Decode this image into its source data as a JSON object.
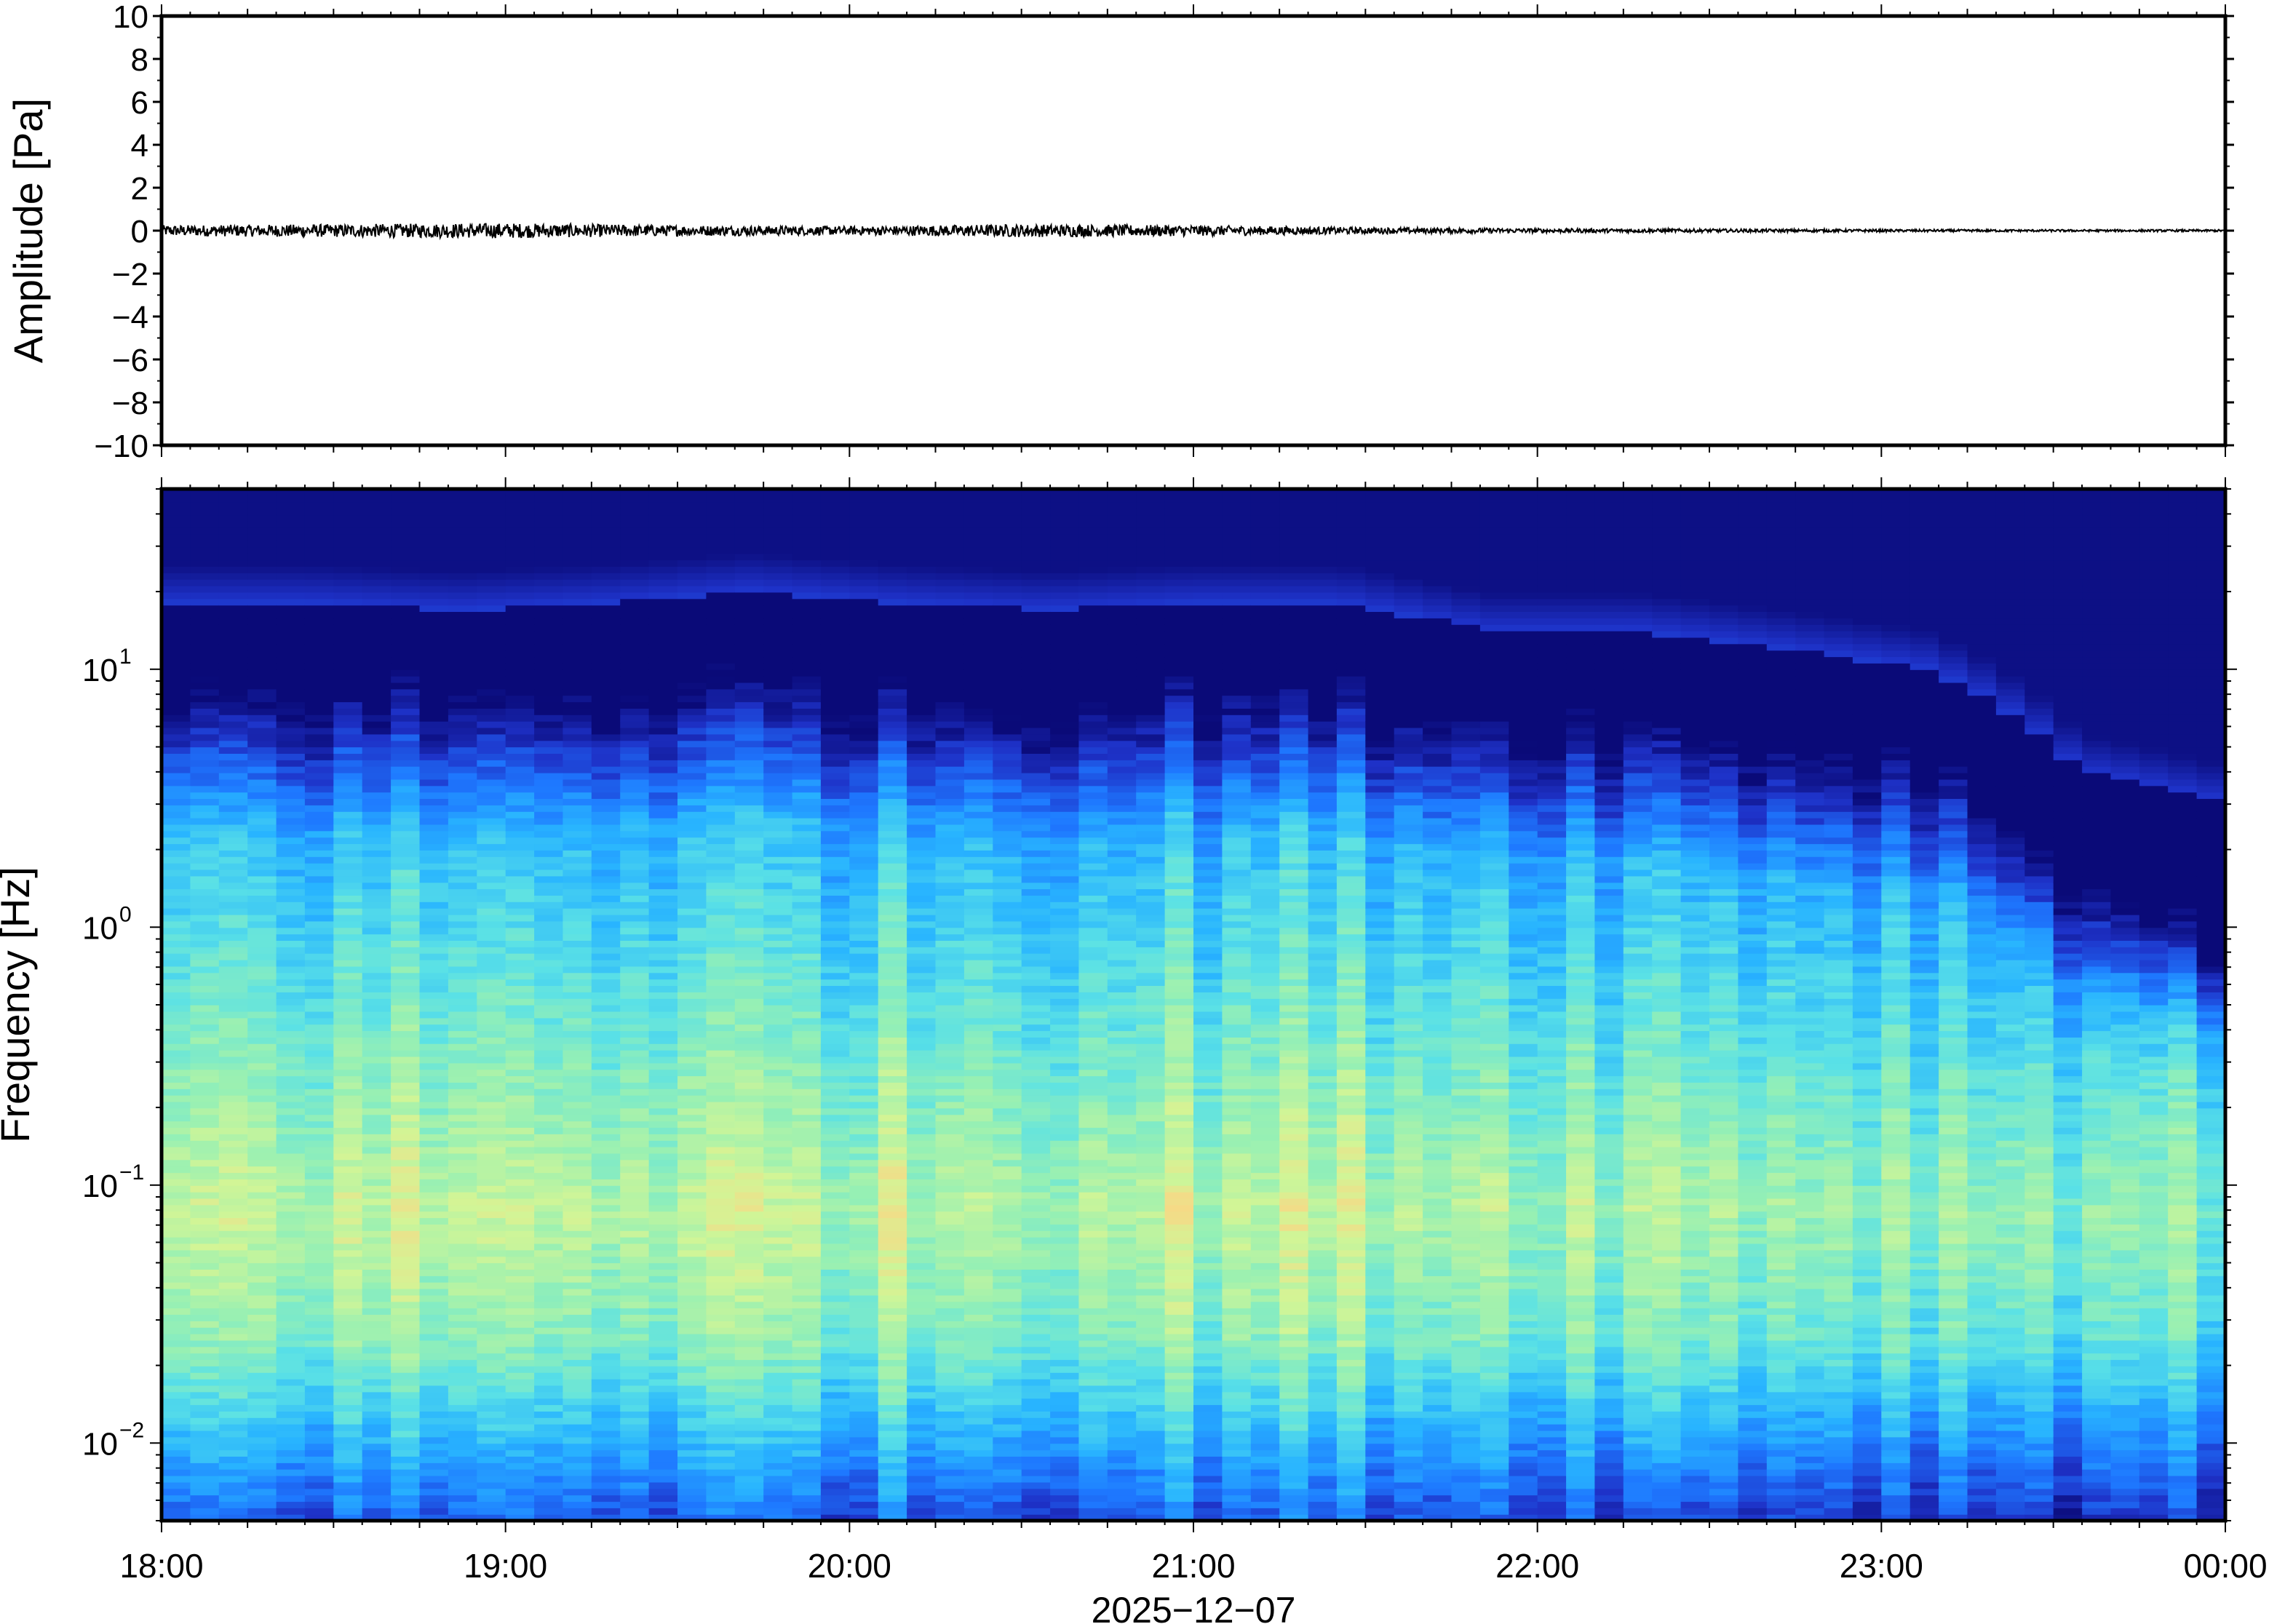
{
  "chart_data": [
    {
      "type": "line",
      "title": "",
      "xlabel": "",
      "ylabel": "Amplitude [Pa]",
      "ylim": [
        -10,
        10
      ],
      "yticks": [
        10,
        8,
        6,
        4,
        2,
        0,
        -2,
        -4,
        -6,
        -8,
        -10
      ],
      "ytick_labels": [
        "10",
        "8",
        "6",
        "4",
        "2",
        "0",
        "−2",
        "−4",
        "−6",
        "−8",
        "−10"
      ],
      "xlim": [
        "18:00",
        "00:00"
      ],
      "series": [
        {
          "color": "#000000",
          "x_hours": [
            0,
            0.5,
            1,
            1.5,
            2,
            2.5,
            3,
            3.5,
            4,
            4.5,
            5,
            5.5,
            6
          ],
          "envelope_pa": [
            0.25,
            0.3,
            0.35,
            0.25,
            0.2,
            0.3,
            0.25,
            0.15,
            0.1,
            0.08,
            0.06,
            0.05,
            0.05
          ]
        }
      ],
      "grid": false
    },
    {
      "type": "heatmap",
      "title": "",
      "xlabel": "2025−12−07",
      "ylabel": "Frequency [Hz]",
      "yscale": "log",
      "ylim": [
        0.005,
        50
      ],
      "yticks": [
        {
          "value": 10,
          "base": "10",
          "exp": "1"
        },
        {
          "value": 1,
          "base": "10",
          "exp": "0"
        },
        {
          "value": 0.1,
          "base": "10",
          "exp": "−1"
        },
        {
          "value": 0.01,
          "base": "10",
          "exp": "−2"
        }
      ],
      "xticks": [
        "18:00",
        "19:00",
        "20:00",
        "21:00",
        "22:00",
        "23:00",
        "00:00"
      ],
      "colormap": [
        "#0a0a78",
        "#1e32c8",
        "#1e78ff",
        "#28b4ff",
        "#5ae1e6",
        "#96f0b4",
        "#d2f596",
        "#ffd282",
        "#ffa064"
      ],
      "n_time_bins": 72,
      "envelope_hz": {
        "top_dark_cutoff_hz": [
          18,
          18,
          17,
          18,
          20,
          18,
          17,
          18,
          18,
          14,
          14,
          12,
          10,
          4,
          3
        ],
        "peak_band_hz": [
          0.03,
          0.3
        ]
      },
      "grid": false
    }
  ]
}
